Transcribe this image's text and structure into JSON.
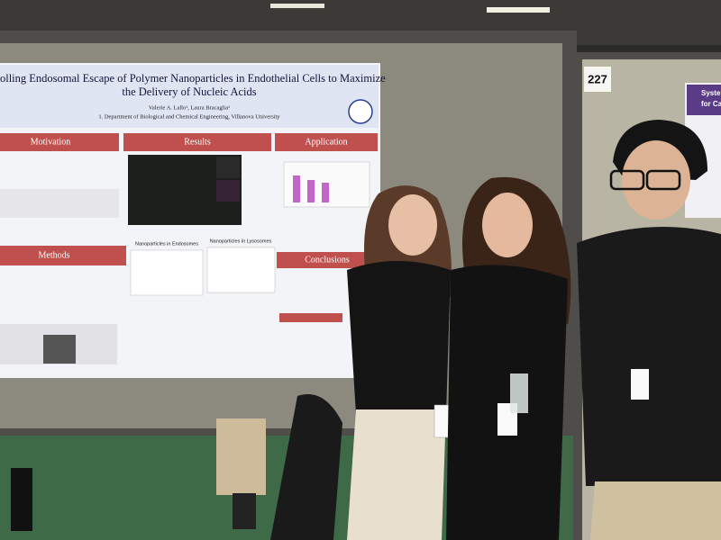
{
  "poster": {
    "title_lines": [
      "trolling Endosomal Escape of Polymer Nanoparticles in Endothelial Cells to Maximize",
      "the Delivery of Nucleic Acids"
    ],
    "authors": "Valerie A. Lallo¹, Laura Bracaglia¹",
    "affiliation": "1. Department of Biological and Chemical Engineering, Villanova University",
    "sections": [
      "Motivation",
      "Results",
      "Application",
      "Methods",
      "Conclusions"
    ],
    "figure_labels": [
      "Nanoparticles in Endosomes",
      "Nanoparticles in Lysosomes"
    ]
  },
  "board_number": "227",
  "neighbor_poster": {
    "title_lines": [
      "Systemi",
      "for Canc"
    ]
  }
}
